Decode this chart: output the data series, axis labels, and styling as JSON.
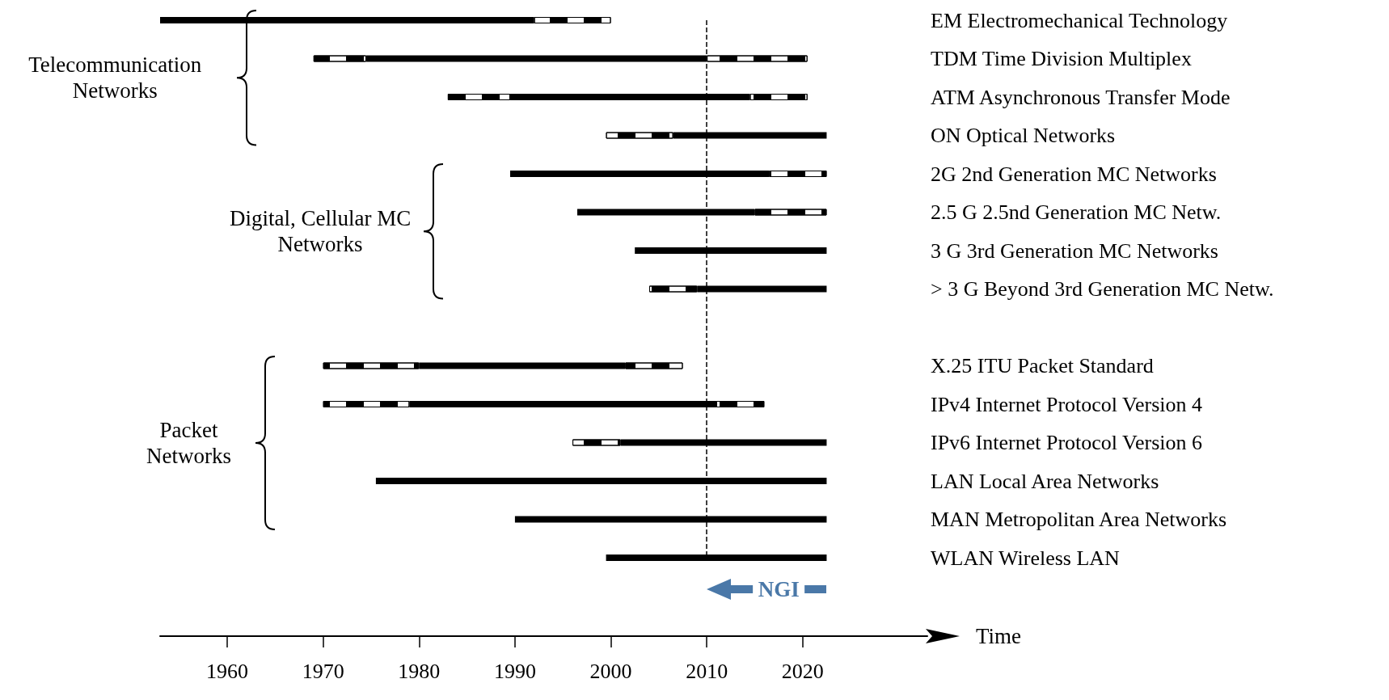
{
  "chart_data": {
    "type": "bar",
    "orientation": "horizontal",
    "xlabel": "Time",
    "categories": [
      "EM Electromechanical Technology",
      "TDM Time Division Multiplex",
      "ATM Asynchronous Transfer Mode",
      "ON Optical Networks",
      "2G 2nd Generation MC Networks",
      "2.5 G 2.5nd Generation MC Netw.",
      "3 G 3rd Generation MC Networks",
      "> 3 G Beyond 3rd Generation MC Netw.",
      null,
      "X.25 ITU Packet Standard",
      "IPv4 Internet Protocol Version 4",
      "IPv6 Internet Protocol Version 6",
      "LAN Local Area Networks",
      "MAN Metropolitan Area Networks",
      "WLAN Wireless LAN"
    ],
    "series": [
      {
        "color": "#000000",
        "line_style": "dashed",
        "base": [
          null,
          1969,
          1983,
          1999.5,
          null,
          null,
          null,
          2004,
          null,
          1970,
          1970,
          1996,
          null,
          null,
          null
        ],
        "values": [
          null,
          5.5,
          6.5,
          7,
          null,
          null,
          null,
          5,
          null,
          10,
          9,
          5,
          null,
          null,
          null
        ]
      },
      {
        "color": "#000000",
        "line_style": "solid",
        "base": [
          1953,
          1974.5,
          1989.5,
          2006.5,
          1989.5,
          1996.5,
          2002.5,
          2009,
          null,
          1980,
          1979,
          2001,
          1975.5,
          1990,
          1999.5
        ],
        "values": [
          39,
          35.5,
          25,
          16,
          27,
          18.5,
          20,
          13.5,
          null,
          21.5,
          32,
          21.5,
          47,
          32.5,
          23
        ]
      },
      {
        "color": "#000000",
        "line_style": "dashed",
        "base": [
          1992,
          2010,
          2014.5,
          null,
          2016.5,
          2015,
          null,
          null,
          null,
          2001.5,
          2011,
          null,
          null,
          null,
          null
        ],
        "values": [
          8,
          10.5,
          6,
          null,
          6,
          7.5,
          null,
          null,
          null,
          6,
          5,
          null,
          null,
          null,
          null
        ]
      }
    ],
    "xlim": [
      1953,
      2033
    ],
    "xticks": [
      1960,
      1970,
      1980,
      1990,
      2000,
      2010,
      2020
    ],
    "ref_lines": [
      {
        "axis": "x",
        "value": 2010
      }
    ],
    "annotations": [
      "Telecommunication Networks",
      "Digital, Cellular MC Networks",
      "Packet Networks",
      "NGI"
    ]
  }
}
